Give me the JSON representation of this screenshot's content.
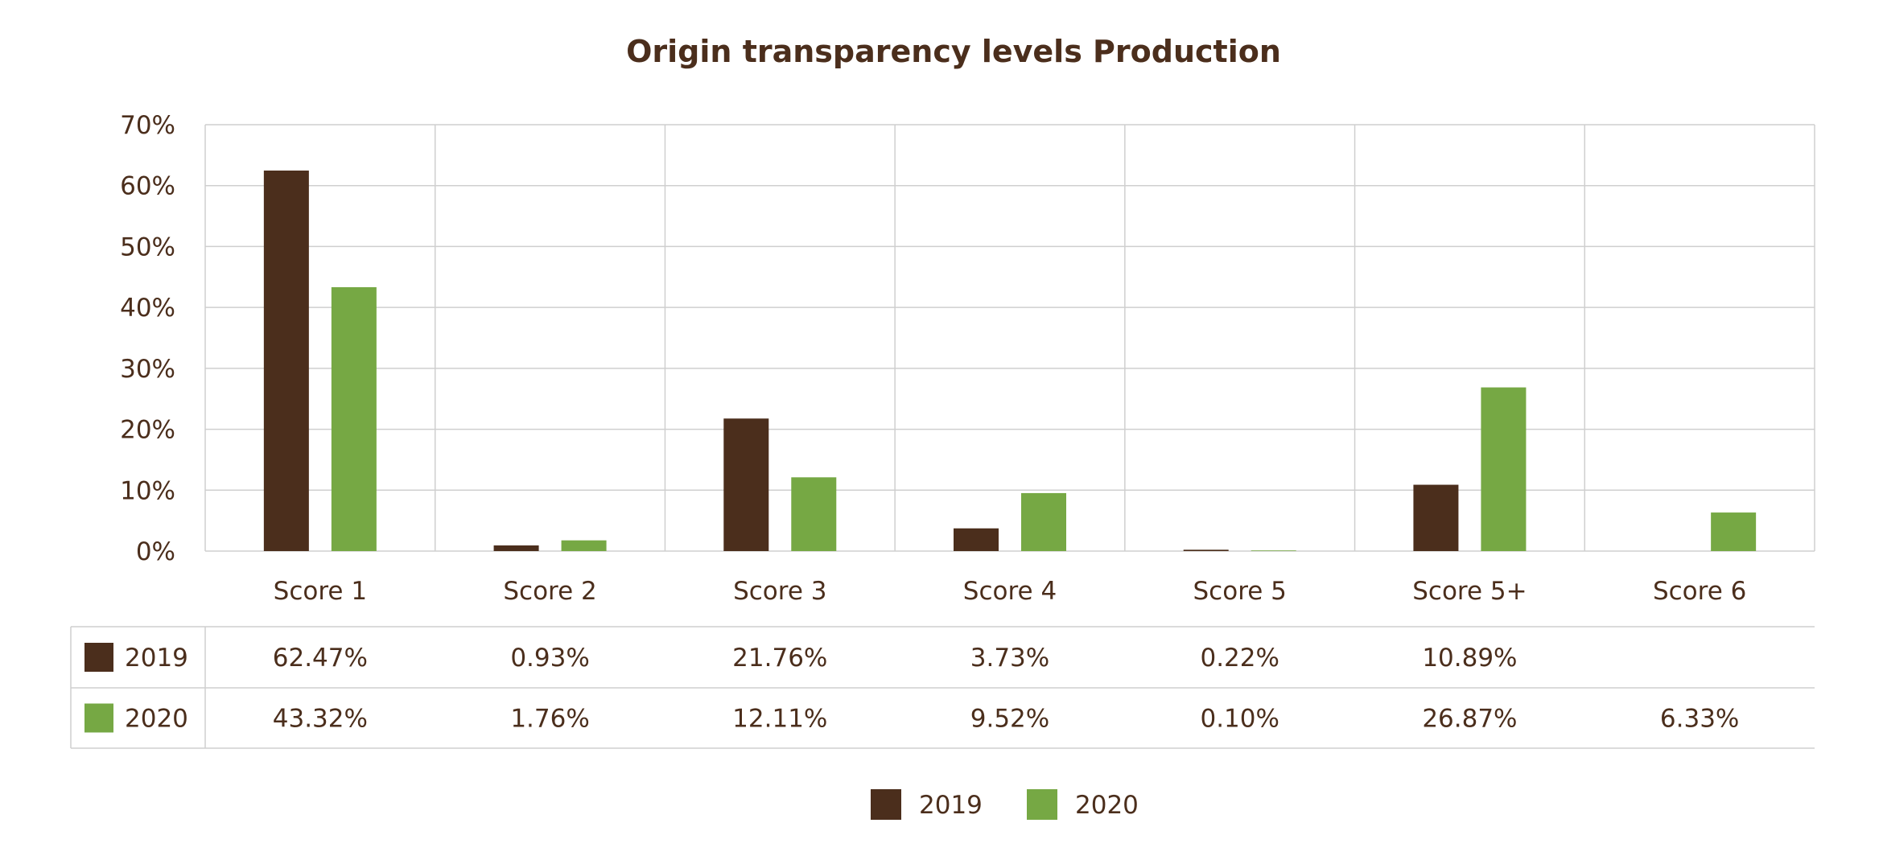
{
  "chart_data": {
    "type": "bar",
    "title": "Origin transparency levels Production",
    "categories": [
      "Score 1",
      "Score 2",
      "Score 3",
      "Score 4",
      "Score 5",
      "Score 5+",
      "Score 6"
    ],
    "series": [
      {
        "name": "2019",
        "color": "#4b2e1c",
        "values": [
          62.47,
          0.93,
          21.76,
          3.73,
          0.22,
          10.89,
          null
        ],
        "labels": [
          "62.47%",
          "0.93%",
          "21.76%",
          "3.73%",
          "0.22%",
          "10.89%",
          ""
        ]
      },
      {
        "name": "2020",
        "color": "#76a844",
        "values": [
          43.32,
          1.76,
          12.11,
          9.52,
          0.1,
          26.87,
          6.33
        ],
        "labels": [
          "43.32%",
          "1.76%",
          "12.11%",
          "9.52%",
          "0.10%",
          "26.87%",
          "6.33%"
        ]
      }
    ],
    "ylim": [
      0,
      70
    ],
    "yticks": [
      0,
      10,
      20,
      30,
      40,
      50,
      60,
      70
    ],
    "ytick_labels": [
      "0%",
      "10%",
      "20%",
      "30%",
      "40%",
      "50%",
      "60%",
      "70%"
    ],
    "xlabel": "",
    "ylabel": "",
    "grid": true,
    "data_table": true,
    "legend": {
      "position": "bottom-center",
      "entries": [
        "2019",
        "2020"
      ]
    }
  }
}
